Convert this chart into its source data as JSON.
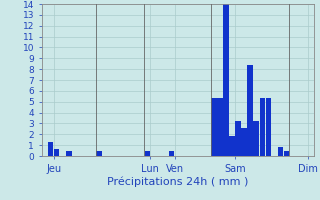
{
  "xlabel": "Précipitations 24h ( mm )",
  "background_color": "#cce8e8",
  "bar_color": "#1133cc",
  "ylim": [
    0,
    14
  ],
  "yticks": [
    0,
    1,
    2,
    3,
    4,
    5,
    6,
    7,
    8,
    9,
    10,
    11,
    12,
    13,
    14
  ],
  "grid_color": "#aacccc",
  "day_labels": [
    "Jeu",
    "Lun",
    "Ven",
    "Sam",
    "Dim"
  ],
  "day_tick_positions": [
    1.5,
    17.5,
    21.5,
    31.5,
    43.5
  ],
  "vline_positions": [
    8.5,
    16.5,
    27.5,
    40.5
  ],
  "n_bars": 45,
  "values": [
    0,
    1.3,
    0.6,
    0,
    0.5,
    0,
    0,
    0,
    0,
    0.5,
    0,
    0,
    0,
    0,
    0,
    0,
    0,
    0.5,
    0,
    0,
    0,
    0.5,
    0,
    0,
    0,
    0,
    0,
    0,
    5.3,
    5.3,
    14.0,
    1.8,
    3.2,
    2.6,
    8.4,
    3.2,
    5.3,
    5.3,
    0,
    0.8,
    0.5,
    0,
    0,
    0,
    0
  ],
  "xlabel_fontsize": 8,
  "tick_fontsize": 6.5,
  "day_label_fontsize": 7,
  "text_color": "#2244bb",
  "spine_color": "#888888",
  "separator_color": "#666666"
}
